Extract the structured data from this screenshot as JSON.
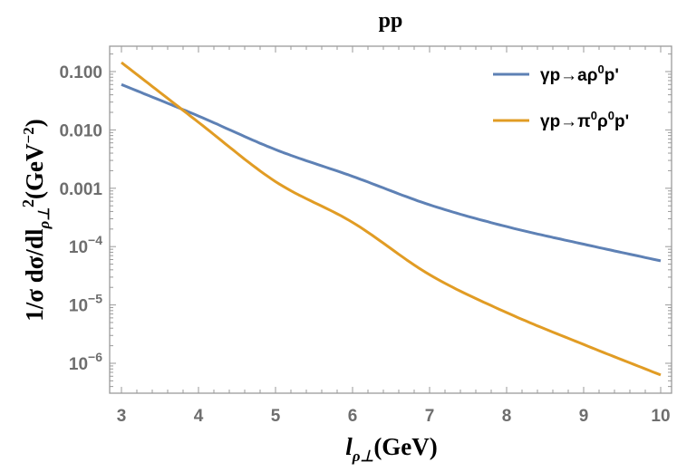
{
  "chart_data": {
    "type": "line",
    "title": "pp",
    "xlabel": "l_{ρ⊥}(GeV)",
    "ylabel": "1/σ dσ/dl_{ρ⊥}^2(GeV^-2)",
    "xlim": [
      2.85,
      10.15
    ],
    "ylim": [
      3e-07,
      0.25
    ],
    "yscale": "log",
    "x_ticks": [
      3,
      4,
      5,
      6,
      7,
      8,
      9,
      10
    ],
    "y_ticks": [
      {
        "value": 0.1,
        "label": "0.100"
      },
      {
        "value": 0.01,
        "label": "0.010"
      },
      {
        "value": 0.001,
        "label": "0.001"
      },
      {
        "value": 0.0001,
        "label": "10^-4"
      },
      {
        "value": 1e-05,
        "label": "10^-5"
      },
      {
        "value": 1e-06,
        "label": "10^-6"
      }
    ],
    "grid": false,
    "legend_position": "upper right",
    "x": [
      3,
      4,
      5,
      6,
      7,
      8,
      9,
      10
    ],
    "series": [
      {
        "name": "γp→aρ⁰p'",
        "color": "#5e81b5",
        "values": [
          0.06,
          0.0173,
          0.0046,
          0.0016,
          0.00052,
          0.00022,
          0.00011,
          5.7e-05
        ]
      },
      {
        "name": "γp→π⁰ρ⁰p'",
        "color": "#e19c24",
        "values": [
          0.143,
          0.0135,
          0.0013,
          0.00026,
          3.3e-05,
          7.4e-06,
          2.1e-06,
          6.3e-07
        ]
      }
    ]
  },
  "labels": {
    "title": "pp",
    "xlabel_main": "l",
    "xlabel_sub": "ρ⊥",
    "xlabel_unit": "(GeV)",
    "ylabel_pre": "1/σ dσ/dl",
    "ylabel_sub": "ρ⊥",
    "ylabel_sup": "2",
    "ylabel_unit": "(GeV",
    "ylabel_unit_sup": "−2",
    "ylabel_close": ")",
    "legend_1_pre": "γp→aρ",
    "legend_1_sup": "0",
    "legend_1_post": "p'",
    "legend_2_pre": "γp→π",
    "legend_2_sup1": "0",
    "legend_2_mid": "ρ",
    "legend_2_sup2": "0",
    "legend_2_post": "p'"
  }
}
